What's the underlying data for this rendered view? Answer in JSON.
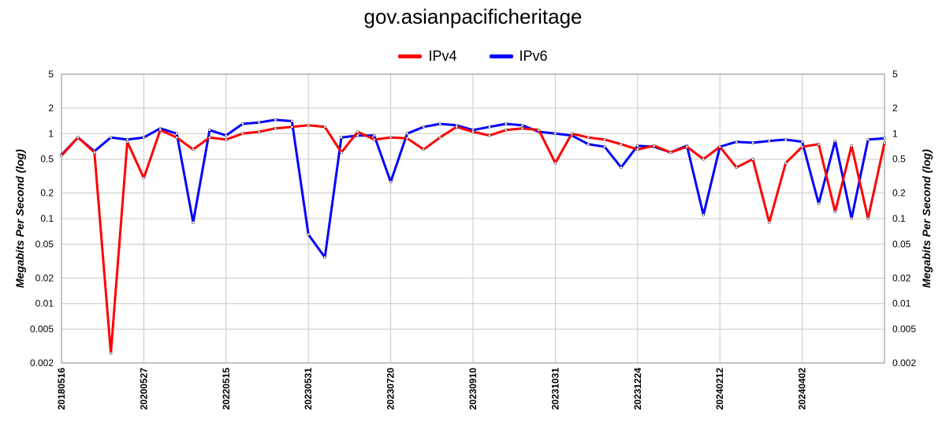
{
  "chart_data": {
    "type": "line",
    "title": "gov.asianpacificheritage",
    "ylabel": "Megabits Per Second (log)",
    "y_scale": "log",
    "ylim": [
      0.002,
      5
    ],
    "yticks": [
      5,
      2,
      1,
      0.5,
      0.2,
      0.1,
      0.05,
      0.02,
      0.01,
      0.005,
      0.002
    ],
    "ytick_labels": [
      "5",
      "2",
      "1",
      "0.5",
      "0.2",
      "0.1",
      "0.05",
      "0.02",
      "0.01",
      "0.005",
      "0.002"
    ],
    "x_categories": [
      "20180516",
      "20200527",
      "20220515",
      "20230531",
      "20230720",
      "20230910",
      "20231031",
      "20231224",
      "20240212",
      "20240402"
    ],
    "grid": true,
    "legend_position": "top-center",
    "series": [
      {
        "name": "IPv4",
        "color": "#ff0000",
        "x": [
          0,
          2,
          4,
          6,
          8,
          10,
          12,
          14,
          16,
          18,
          20,
          22,
          24,
          26,
          28,
          30,
          32,
          34,
          36,
          38,
          40,
          42,
          44,
          46,
          48,
          50,
          52,
          54,
          56,
          58,
          60,
          62,
          64,
          66,
          68,
          70,
          72,
          74,
          76,
          78,
          80,
          82,
          84,
          86,
          88,
          90,
          92,
          94,
          96,
          98,
          100
        ],
        "values": [
          0.55,
          0.9,
          0.6,
          0.0026,
          0.8,
          0.3,
          1.1,
          0.9,
          0.65,
          0.9,
          0.85,
          1.0,
          1.05,
          1.15,
          1.2,
          1.25,
          1.2,
          0.6,
          1.05,
          0.85,
          0.9,
          0.88,
          0.65,
          0.9,
          1.2,
          1.05,
          0.95,
          1.1,
          1.15,
          1.1,
          0.45,
          1.0,
          0.9,
          0.85,
          0.75,
          0.65,
          0.72,
          0.6,
          0.7,
          0.5,
          0.7,
          0.4,
          0.5,
          0.09,
          0.45,
          0.7,
          0.75,
          0.12,
          0.72,
          0.1,
          0.78
        ]
      },
      {
        "name": "IPv6",
        "color": "#0000ff",
        "x": [
          0,
          2,
          4,
          6,
          8,
          10,
          12,
          14,
          16,
          18,
          20,
          22,
          24,
          26,
          28,
          30,
          32,
          34,
          36,
          38,
          40,
          42,
          44,
          46,
          48,
          50,
          52,
          54,
          56,
          58,
          60,
          62,
          64,
          66,
          68,
          70,
          72,
          74,
          76,
          78,
          80,
          82,
          84,
          86,
          88,
          90,
          92,
          94,
          96,
          98,
          100
        ],
        "values": [
          0.56,
          0.9,
          0.62,
          0.9,
          0.85,
          0.9,
          1.15,
          1.0,
          0.09,
          1.1,
          0.95,
          1.3,
          1.35,
          1.45,
          1.4,
          0.065,
          0.035,
          0.9,
          0.95,
          0.95,
          0.27,
          1.0,
          1.2,
          1.3,
          1.25,
          1.1,
          1.2,
          1.3,
          1.25,
          1.05,
          1.0,
          0.95,
          0.75,
          0.7,
          0.4,
          0.72,
          0.7,
          0.6,
          0.72,
          0.11,
          0.7,
          0.8,
          0.78,
          0.82,
          0.85,
          0.8,
          0.15,
          0.82,
          0.1,
          0.85,
          0.88
        ]
      }
    ]
  }
}
